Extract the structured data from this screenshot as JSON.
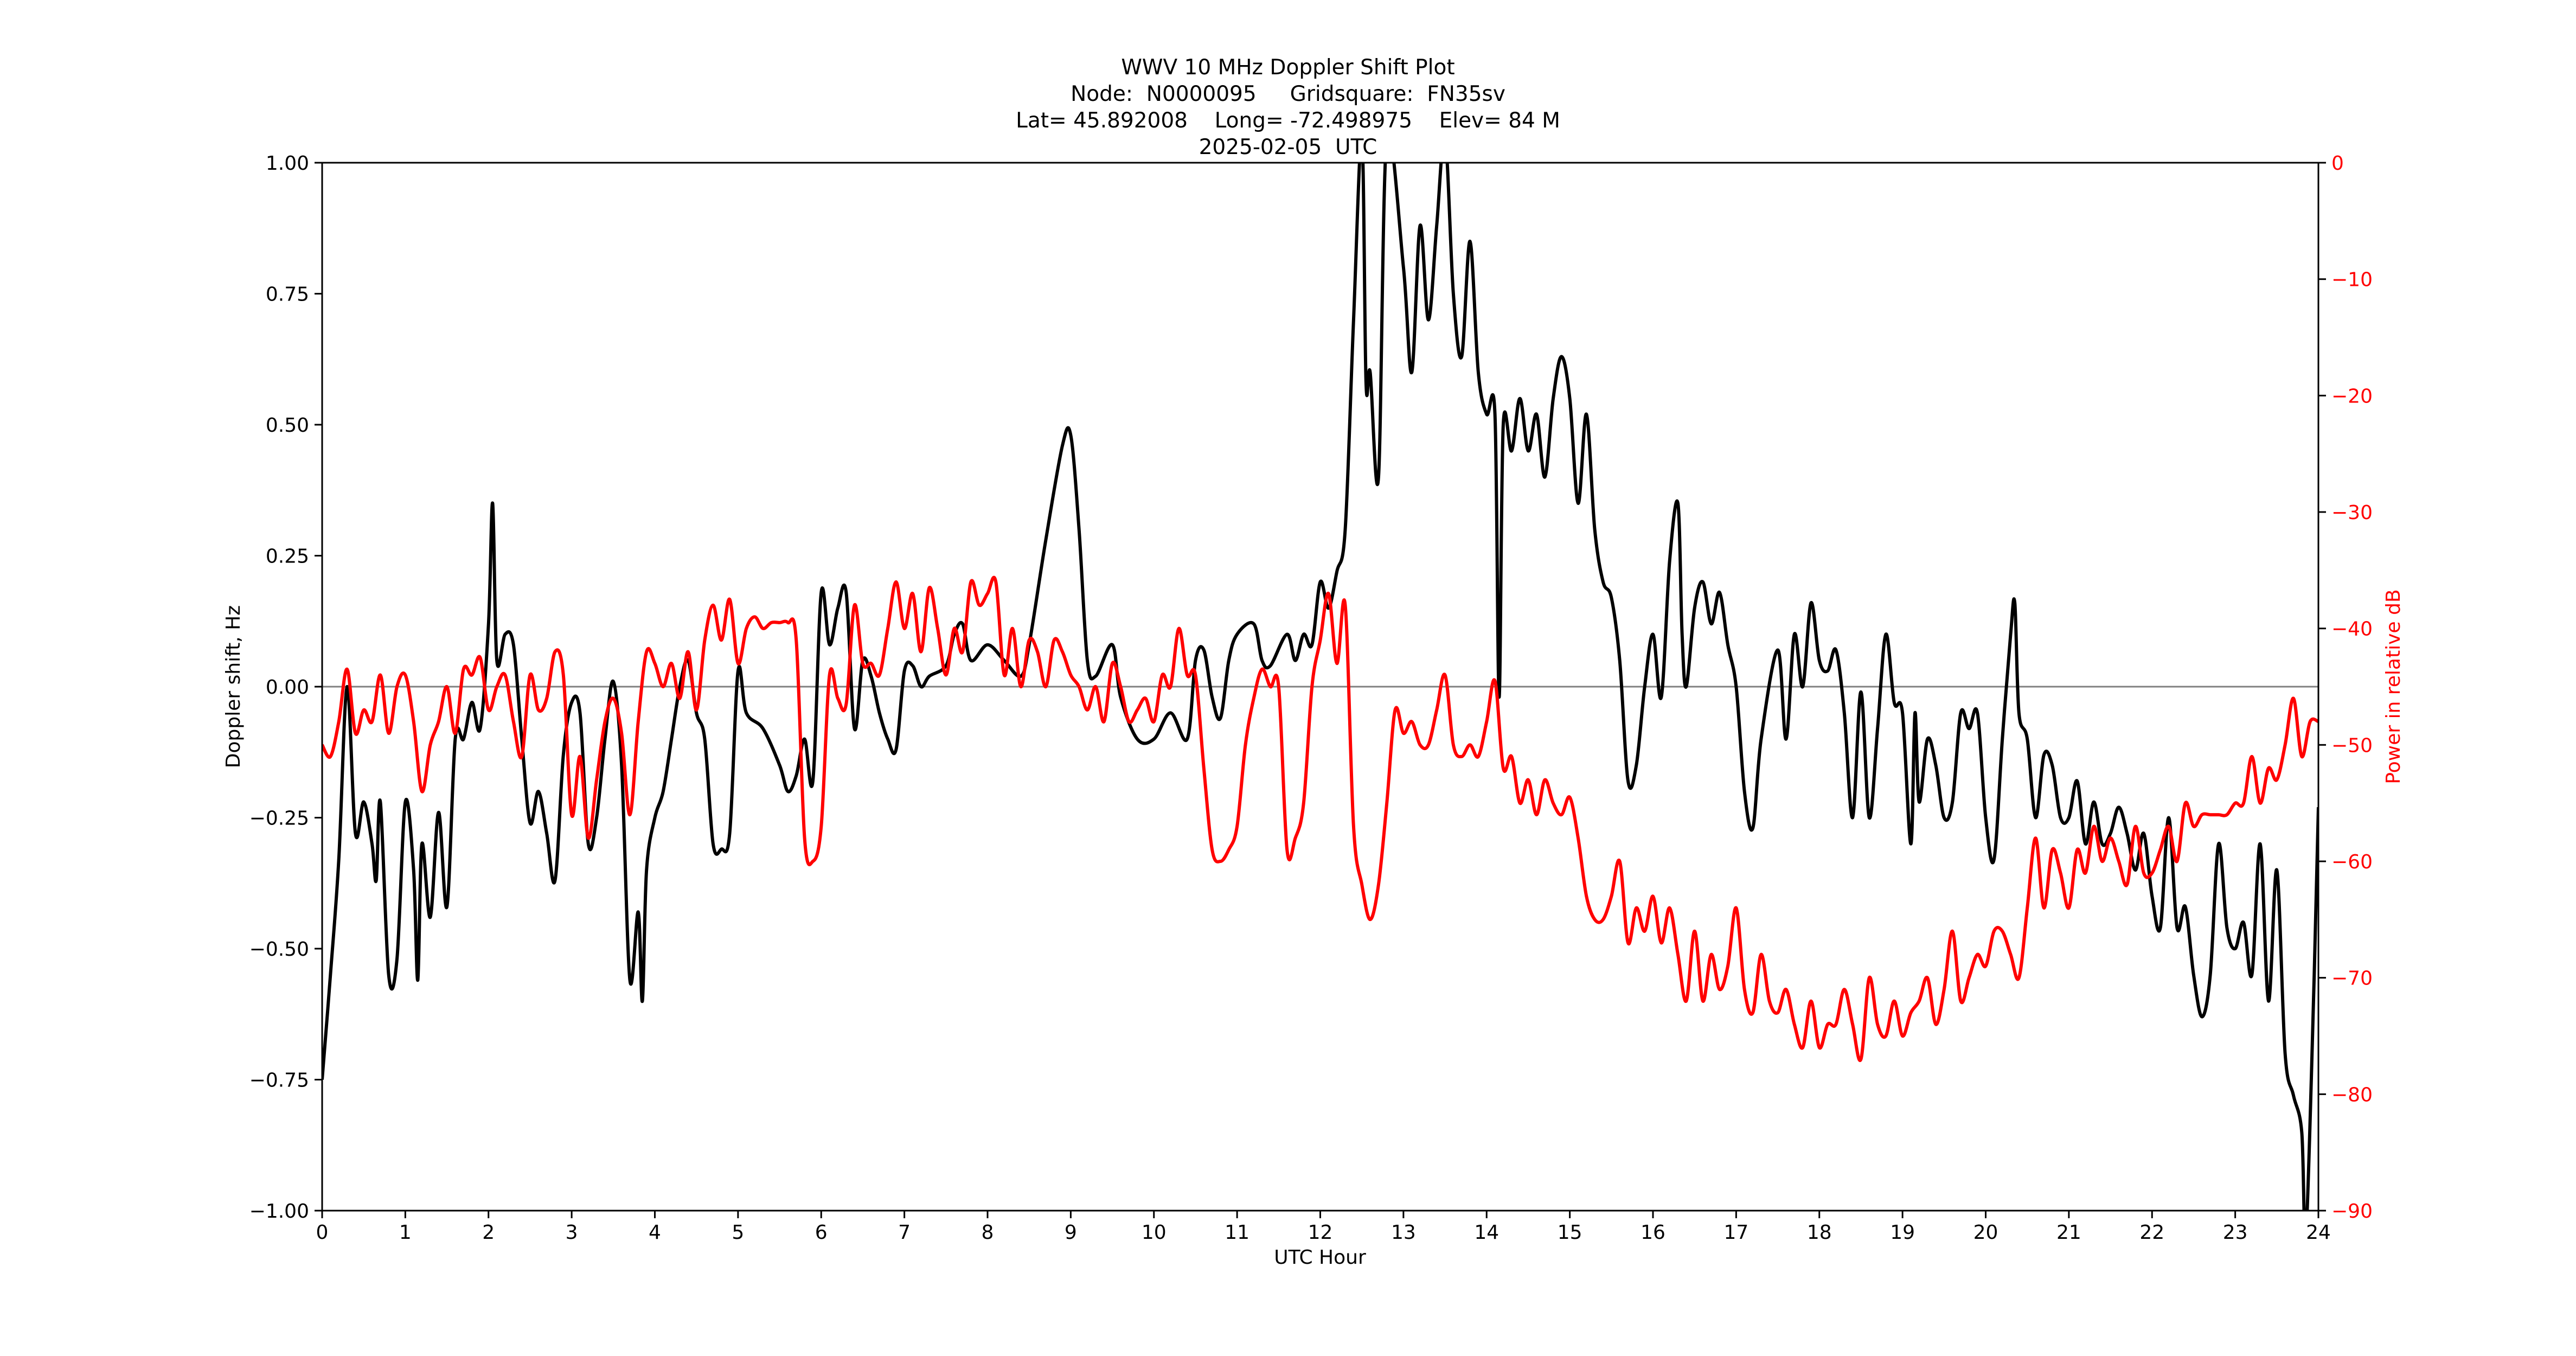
{
  "figure": {
    "title_lines": [
      "WWV 10 MHz Doppler Shift Plot",
      "Node:  N0000095     Gridsquare:  FN35sv",
      "Lat= 45.892008    Long= -72.498975    Elev= 84 M",
      "2025-02-05  UTC"
    ],
    "colors": {
      "doppler_line": "#000000",
      "power_line": "#ff0000",
      "zero_line": "#808080",
      "right_axis_text": "#ff0000",
      "axes": "#000000",
      "background": "#ffffff"
    }
  },
  "chart_data": {
    "type": "line",
    "title": "WWV 10 MHz Doppler Shift Plot",
    "subtitle": [
      "Node:  N0000095     Gridsquare:  FN35sv",
      "Lat= 45.892008    Long= -72.498975    Elev= 84 M",
      "2025-02-05  UTC"
    ],
    "xlabel": "UTC Hour",
    "ylabel": "Doppler shift, Hz",
    "y2label": "Power in relative dB",
    "xlim": [
      0,
      24
    ],
    "ylim": [
      -1.0,
      1.0
    ],
    "y2lim": [
      -90,
      0
    ],
    "xticks": [
      "0",
      "1",
      "2",
      "3",
      "4",
      "5",
      "6",
      "7",
      "8",
      "9",
      "10",
      "11",
      "12",
      "13",
      "14",
      "15",
      "16",
      "17",
      "18",
      "19",
      "20",
      "21",
      "22",
      "23",
      "24"
    ],
    "yticks": [
      "1.00",
      "0.75",
      "0.50",
      "0.25",
      "0.00",
      "−0.25",
      "−0.50",
      "−0.75",
      "−1.00"
    ],
    "ytick_values": [
      1.0,
      0.75,
      0.5,
      0.25,
      0.0,
      -0.25,
      -0.5,
      -0.75,
      -1.0
    ],
    "y2ticks": [
      "0",
      "−10",
      "−20",
      "−30",
      "−40",
      "−50",
      "−60",
      "−70",
      "−80",
      "−90"
    ],
    "y2tick_values": [
      0,
      -10,
      -20,
      -30,
      -40,
      -50,
      -60,
      -70,
      -80,
      -90
    ],
    "grid": false,
    "legend": null,
    "reference_line": {
      "axis": "y",
      "value": 0.0,
      "color": "#808080"
    },
    "series": [
      {
        "name": "Doppler shift (Hz)",
        "axis": "left",
        "color": "#000000",
        "x": [
          0,
          0.1,
          0.2,
          0.3,
          0.4,
          0.5,
          0.6,
          0.65,
          0.7,
          0.8,
          0.9,
          1.0,
          1.1,
          1.15,
          1.2,
          1.3,
          1.4,
          1.5,
          1.6,
          1.7,
          1.8,
          1.9,
          2.0,
          2.05,
          2.1,
          2.2,
          2.3,
          2.4,
          2.5,
          2.6,
          2.7,
          2.8,
          2.9,
          3.0,
          3.1,
          3.2,
          3.3,
          3.4,
          3.5,
          3.6,
          3.7,
          3.8,
          3.85,
          3.9,
          4.0,
          4.1,
          4.2,
          4.3,
          4.4,
          4.5,
          4.6,
          4.7,
          4.8,
          4.9,
          5.0,
          5.1,
          5.3,
          5.5,
          5.6,
          5.7,
          5.8,
          5.9,
          6.0,
          6.1,
          6.2,
          6.3,
          6.4,
          6.5,
          6.6,
          6.7,
          6.8,
          6.9,
          7.0,
          7.1,
          7.2,
          7.3,
          7.5,
          7.6,
          7.7,
          7.8,
          8.0,
          8.2,
          8.4,
          8.5,
          8.7,
          8.9,
          9.0,
          9.1,
          9.2,
          9.3,
          9.5,
          9.6,
          9.8,
          10.0,
          10.2,
          10.4,
          10.5,
          10.6,
          10.7,
          10.8,
          10.9,
          11.0,
          11.2,
          11.3,
          11.4,
          11.6,
          11.7,
          11.8,
          11.9,
          12.0,
          12.1,
          12.2,
          12.3,
          12.4,
          12.5,
          12.55,
          12.6,
          12.7,
          12.8,
          13.0,
          13.1,
          13.2,
          13.3,
          13.4,
          13.5,
          13.6,
          13.7,
          13.8,
          13.9,
          14.0,
          14.1,
          14.15,
          14.2,
          14.3,
          14.4,
          14.5,
          14.6,
          14.7,
          14.8,
          14.9,
          15.0,
          15.1,
          15.2,
          15.3,
          15.4,
          15.5,
          15.6,
          15.7,
          15.8,
          15.9,
          16.0,
          16.1,
          16.2,
          16.3,
          16.35,
          16.4,
          16.5,
          16.6,
          16.7,
          16.8,
          16.9,
          17.0,
          17.1,
          17.2,
          17.3,
          17.5,
          17.6,
          17.7,
          17.8,
          17.9,
          18.0,
          18.1,
          18.2,
          18.3,
          18.4,
          18.5,
          18.6,
          18.7,
          18.8,
          18.9,
          19.0,
          19.1,
          19.15,
          19.2,
          19.3,
          19.4,
          19.5,
          19.6,
          19.7,
          19.8,
          19.9,
          20.0,
          20.1,
          20.2,
          20.3,
          20.35,
          20.4,
          20.5,
          20.6,
          20.7,
          20.8,
          20.9,
          21.0,
          21.1,
          21.2,
          21.3,
          21.4,
          21.5,
          21.6,
          21.7,
          21.8,
          21.9,
          22.0,
          22.1,
          22.2,
          22.3,
          22.4,
          22.5,
          22.6,
          22.7,
          22.8,
          22.9,
          23.0,
          23.1,
          23.2,
          23.3,
          23.4,
          23.5,
          23.6,
          23.7,
          23.8,
          23.85,
          23.95,
          24.0
        ],
        "values": [
          -0.75,
          -0.55,
          -0.33,
          0.0,
          -0.28,
          -0.22,
          -0.3,
          -0.37,
          -0.22,
          -0.55,
          -0.52,
          -0.22,
          -0.35,
          -0.56,
          -0.3,
          -0.44,
          -0.24,
          -0.42,
          -0.1,
          -0.1,
          -0.03,
          -0.08,
          0.12,
          0.35,
          0.05,
          0.1,
          0.08,
          -0.1,
          -0.26,
          -0.2,
          -0.28,
          -0.37,
          -0.13,
          -0.03,
          -0.05,
          -0.3,
          -0.25,
          -0.1,
          0.01,
          -0.15,
          -0.56,
          -0.43,
          -0.6,
          -0.35,
          -0.25,
          -0.2,
          -0.1,
          0.0,
          0.05,
          -0.05,
          -0.1,
          -0.3,
          -0.31,
          -0.28,
          0.03,
          -0.05,
          -0.08,
          -0.15,
          -0.2,
          -0.17,
          -0.1,
          -0.18,
          0.18,
          0.08,
          0.15,
          0.18,
          -0.08,
          0.05,
          0.02,
          -0.05,
          -0.1,
          -0.12,
          0.03,
          0.04,
          0.0,
          0.02,
          0.04,
          0.1,
          0.12,
          0.05,
          0.08,
          0.05,
          0.02,
          0.08,
          0.28,
          0.46,
          0.48,
          0.3,
          0.05,
          0.02,
          0.08,
          -0.02,
          -0.1,
          -0.1,
          -0.05,
          -0.1,
          0.05,
          0.07,
          -0.02,
          -0.06,
          0.05,
          0.1,
          0.12,
          0.05,
          0.04,
          0.1,
          0.05,
          0.1,
          0.08,
          0.2,
          0.15,
          0.22,
          0.3,
          0.7,
          1.05,
          0.58,
          0.6,
          0.4,
          1.05,
          0.8,
          0.6,
          0.88,
          0.7,
          0.88,
          1.05,
          0.75,
          0.63,
          0.85,
          0.6,
          0.52,
          0.52,
          -0.02,
          0.5,
          0.45,
          0.55,
          0.45,
          0.52,
          0.4,
          0.55,
          0.63,
          0.55,
          0.35,
          0.52,
          0.3,
          0.2,
          0.17,
          0.05,
          -0.18,
          -0.15,
          0.0,
          0.1,
          -0.02,
          0.24,
          0.35,
          0.1,
          0.0,
          0.15,
          0.2,
          0.12,
          0.18,
          0.08,
          0.0,
          -0.2,
          -0.27,
          -0.1,
          0.07,
          -0.1,
          0.1,
          0.0,
          0.16,
          0.05,
          0.03,
          0.07,
          -0.05,
          -0.25,
          -0.01,
          -0.25,
          -0.08,
          0.1,
          -0.03,
          -0.05,
          -0.3,
          -0.05,
          -0.22,
          -0.1,
          -0.15,
          -0.25,
          -0.22,
          -0.05,
          -0.08,
          -0.05,
          -0.25,
          -0.33,
          -0.1,
          0.1,
          0.16,
          -0.05,
          -0.1,
          -0.25,
          -0.13,
          -0.15,
          -0.25,
          -0.25,
          -0.18,
          -0.3,
          -0.22,
          -0.3,
          -0.28,
          -0.23,
          -0.28,
          -0.35,
          -0.28,
          -0.4,
          -0.46,
          -0.25,
          -0.46,
          -0.42,
          -0.55,
          -0.63,
          -0.55,
          -0.3,
          -0.46,
          -0.5,
          -0.45,
          -0.55,
          -0.3,
          -0.6,
          -0.35,
          -0.7,
          -0.78,
          -0.85,
          -1.05,
          -0.55,
          -0.23
        ]
      },
      {
        "name": "Power (relative dB)",
        "axis": "right",
        "color": "#ff0000",
        "x": [
          0,
          0.1,
          0.2,
          0.3,
          0.4,
          0.5,
          0.6,
          0.7,
          0.8,
          0.9,
          1.0,
          1.1,
          1.2,
          1.3,
          1.4,
          1.5,
          1.6,
          1.7,
          1.8,
          1.9,
          2.0,
          2.1,
          2.2,
          2.3,
          2.4,
          2.5,
          2.6,
          2.7,
          2.8,
          2.9,
          3.0,
          3.1,
          3.2,
          3.3,
          3.4,
          3.5,
          3.6,
          3.7,
          3.8,
          3.9,
          4.0,
          4.1,
          4.2,
          4.3,
          4.4,
          4.5,
          4.6,
          4.7,
          4.8,
          4.9,
          5.0,
          5.1,
          5.2,
          5.3,
          5.4,
          5.5,
          5.6,
          5.7,
          5.8,
          5.9,
          6.0,
          6.1,
          6.2,
          6.3,
          6.4,
          6.5,
          6.6,
          6.7,
          6.8,
          6.9,
          7.0,
          7.1,
          7.2,
          7.3,
          7.4,
          7.5,
          7.6,
          7.7,
          7.8,
          7.9,
          8.0,
          8.1,
          8.2,
          8.3,
          8.4,
          8.5,
          8.6,
          8.7,
          8.8,
          8.9,
          9.0,
          9.1,
          9.2,
          9.3,
          9.4,
          9.5,
          9.6,
          9.7,
          9.8,
          9.9,
          10.0,
          10.1,
          10.2,
          10.3,
          10.4,
          10.5,
          10.6,
          10.7,
          10.8,
          10.9,
          11.0,
          11.1,
          11.2,
          11.3,
          11.4,
          11.5,
          11.6,
          11.7,
          11.8,
          11.9,
          12.0,
          12.1,
          12.2,
          12.3,
          12.4,
          12.5,
          12.6,
          12.7,
          12.8,
          12.9,
          13.0,
          13.1,
          13.2,
          13.3,
          13.4,
          13.5,
          13.6,
          13.7,
          13.8,
          13.9,
          14.0,
          14.1,
          14.2,
          14.3,
          14.4,
          14.5,
          14.6,
          14.7,
          14.8,
          14.9,
          15.0,
          15.1,
          15.2,
          15.3,
          15.4,
          15.5,
          15.6,
          15.7,
          15.8,
          15.9,
          16.0,
          16.1,
          16.2,
          16.3,
          16.4,
          16.5,
          16.6,
          16.7,
          16.8,
          16.9,
          17.0,
          17.1,
          17.2,
          17.3,
          17.4,
          17.5,
          17.6,
          17.7,
          17.8,
          17.9,
          18.0,
          18.1,
          18.2,
          18.3,
          18.4,
          18.5,
          18.6,
          18.7,
          18.8,
          18.9,
          19.0,
          19.1,
          19.2,
          19.3,
          19.4,
          19.5,
          19.6,
          19.7,
          19.8,
          19.9,
          20.0,
          20.1,
          20.2,
          20.3,
          20.4,
          20.5,
          20.6,
          20.7,
          20.8,
          20.9,
          21.0,
          21.1,
          21.2,
          21.3,
          21.4,
          21.5,
          21.6,
          21.7,
          21.8,
          21.9,
          22.0,
          22.1,
          22.2,
          22.3,
          22.4,
          22.5,
          22.6,
          22.7,
          22.8,
          22.9,
          23.0,
          23.1,
          23.2,
          23.3,
          23.4,
          23.5,
          23.6,
          23.7,
          23.8,
          23.9,
          24.0
        ],
        "values": [
          -50,
          -51,
          -48,
          -43.5,
          -49,
          -47,
          -48,
          -44,
          -49,
          -45,
          -44,
          -48,
          -54,
          -50,
          -48,
          -45,
          -49,
          -43.5,
          -44,
          -42.5,
          -47,
          -45,
          -44,
          -48,
          -51,
          -44,
          -47,
          -46,
          -42,
          -44,
          -56,
          -51,
          -58,
          -53,
          -48,
          -46,
          -49,
          -56,
          -48,
          -42,
          -43,
          -45,
          -43,
          -46,
          -42,
          -47,
          -41,
          -38,
          -41,
          -37.5,
          -43,
          -40,
          -39,
          -40,
          -39.5,
          -39.5,
          -39.5,
          -41,
          -58,
          -60,
          -57,
          -44,
          -46,
          -46.5,
          -38,
          -43,
          -43,
          -44,
          -40,
          -36,
          -40,
          -37,
          -42,
          -36.5,
          -40,
          -44,
          -40,
          -42,
          -36,
          -38,
          -37,
          -36,
          -44,
          -40,
          -45,
          -41,
          -42,
          -45,
          -41,
          -42,
          -44,
          -45,
          -47,
          -45,
          -48,
          -43,
          -45,
          -48,
          -47,
          -46,
          -48,
          -44,
          -45,
          -40,
          -44,
          -44,
          -52,
          -59,
          -60,
          -59,
          -57,
          -50,
          -46,
          -43.5,
          -45,
          -45,
          -59,
          -58,
          -55,
          -45,
          -41,
          -37,
          -43,
          -38,
          -57,
          -62,
          -65,
          -62,
          -55,
          -47,
          -49,
          -48,
          -50,
          -50,
          -47,
          -44,
          -50,
          -51,
          -50,
          -51,
          -48,
          -44.5,
          -52,
          -51,
          -55,
          -53,
          -56,
          -53,
          -55,
          -56,
          -54.5,
          -58,
          -63,
          -65,
          -65,
          -63,
          -60,
          -67,
          -64,
          -66,
          -63,
          -67,
          -64,
          -68,
          -72,
          -66,
          -72,
          -68,
          -71,
          -69,
          -64,
          -71,
          -73,
          -68,
          -72,
          -73,
          -71,
          -74,
          -76,
          -72,
          -76,
          -74,
          -74,
          -71,
          -74,
          -77,
          -70,
          -74,
          -75,
          -72,
          -75,
          -73,
          -72,
          -70,
          -74,
          -71,
          -66,
          -72,
          -70,
          -68,
          -69,
          -66,
          -66,
          -68,
          -70,
          -64,
          -58,
          -64,
          -59,
          -61,
          -64,
          -59,
          -61,
          -57,
          -60,
          -58,
          -60,
          -62,
          -57,
          -61,
          -61,
          -59,
          -57,
          -60,
          -55,
          -57,
          -56,
          -56,
          -56,
          -56,
          -55,
          -55,
          -51,
          -55,
          -52,
          -53,
          -50,
          -46,
          -51,
          -48,
          -48
        ]
      }
    ]
  }
}
